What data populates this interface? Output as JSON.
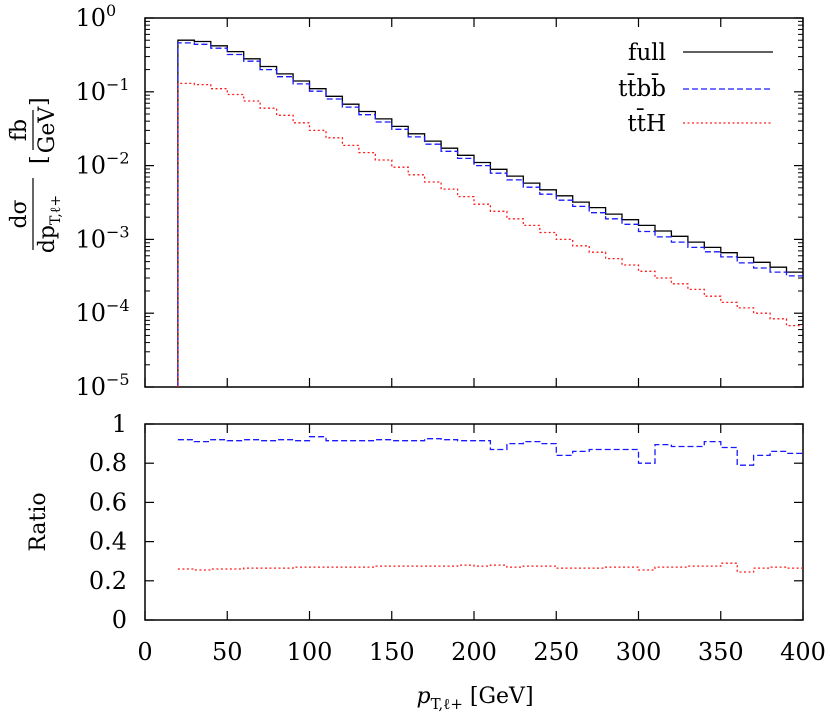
{
  "chart_data": [
    {
      "type": "line",
      "panel": "main",
      "ylabel": "dσ/dp_{T,ℓ+} [fb/GeV]",
      "ylabel_parts": {
        "num": "dσ",
        "den_main": "dp",
        "den_sub": "T,ℓ+",
        "unit_num": "fb",
        "unit_den": "GeV"
      },
      "yscale": "log",
      "xlim": [
        0,
        400
      ],
      "ylim": [
        1e-05,
        1
      ],
      "yticks": [
        {
          "mantissa": "10",
          "exp": "0"
        },
        {
          "mantissa": "10",
          "exp": "−1"
        },
        {
          "mantissa": "10",
          "exp": "−2"
        },
        {
          "mantissa": "10",
          "exp": "−3"
        },
        {
          "mantissa": "10",
          "exp": "−4"
        },
        {
          "mantissa": "10",
          "exp": "−5"
        }
      ],
      "legend_position": "top-right",
      "bin_edges": [
        20,
        30,
        40,
        50,
        60,
        70,
        80,
        90,
        100,
        110,
        120,
        130,
        140,
        150,
        160,
        170,
        180,
        190,
        200,
        210,
        220,
        230,
        240,
        250,
        260,
        270,
        280,
        290,
        300,
        310,
        320,
        330,
        340,
        350,
        360,
        370,
        380,
        390,
        400
      ],
      "series": [
        {
          "name": "full",
          "color": "#000000",
          "dash": "solid",
          "values": [
            0.5,
            0.48,
            0.42,
            0.35,
            0.28,
            0.22,
            0.175,
            0.14,
            0.11,
            0.087,
            0.068,
            0.054,
            0.043,
            0.034,
            0.027,
            0.0215,
            0.0172,
            0.0138,
            0.011,
            0.0089,
            0.0072,
            0.0058,
            0.0047,
            0.0039,
            0.0032,
            0.0027,
            0.0022,
            0.00185,
            0.00155,
            0.0013,
            0.0011,
            0.00092,
            0.00078,
            0.00066,
            0.00057,
            0.00049,
            0.00042,
            0.00036
          ]
        },
        {
          "name": "tt̄bb̄",
          "color": "#1a1aff",
          "dash": "dashed",
          "values": [
            0.46,
            0.44,
            0.39,
            0.32,
            0.26,
            0.2,
            0.16,
            0.128,
            0.102,
            0.08,
            0.062,
            0.049,
            0.039,
            0.031,
            0.0245,
            0.0195,
            0.0156,
            0.0125,
            0.01,
            0.0079,
            0.0064,
            0.0051,
            0.0041,
            0.0034,
            0.0028,
            0.0023,
            0.0019,
            0.0016,
            0.00128,
            0.00108,
            0.00092,
            0.00078,
            0.00068,
            0.00058,
            0.00048,
            0.00041,
            0.00036,
            0.00032
          ]
        },
        {
          "name": "tt̄H",
          "color": "#ff1a1a",
          "dash": "dotted",
          "values": [
            0.13,
            0.125,
            0.11,
            0.092,
            0.075,
            0.06,
            0.048,
            0.038,
            0.03,
            0.0238,
            0.0188,
            0.015,
            0.0119,
            0.0095,
            0.0075,
            0.006,
            0.0048,
            0.0038,
            0.003,
            0.0024,
            0.0019,
            0.00155,
            0.00124,
            0.001,
            0.00082,
            0.00067,
            0.00055,
            0.00045,
            0.00037,
            0.0003,
            0.00025,
            0.00021,
            0.00017,
            0.00014,
            0.000118,
            0.0001,
            8.4e-05,
            6.8e-05
          ]
        }
      ]
    },
    {
      "type": "line",
      "panel": "ratio",
      "ylabel": "Ratio",
      "xlabel": "p_{T,ℓ+} [GeV]",
      "xlabel_parts": {
        "main": "p",
        "sub": "T,ℓ+",
        "unit": " [GeV]"
      },
      "xlim": [
        0,
        400
      ],
      "ylim": [
        0,
        1
      ],
      "xticks": [
        "0",
        "50",
        "100",
        "150",
        "200",
        "250",
        "300",
        "350",
        "400"
      ],
      "yticks": [
        "0",
        "0.2",
        "0.4",
        "0.6",
        "0.8",
        "1"
      ],
      "bin_edges": [
        20,
        30,
        40,
        50,
        60,
        70,
        80,
        90,
        100,
        110,
        120,
        130,
        140,
        150,
        160,
        170,
        180,
        190,
        200,
        210,
        220,
        230,
        240,
        250,
        260,
        270,
        280,
        290,
        300,
        310,
        320,
        330,
        340,
        350,
        360,
        370,
        380,
        390,
        400
      ],
      "series": [
        {
          "name": "tt̄bb̄",
          "color": "#1a1aff",
          "dash": "dashed",
          "values": [
            0.92,
            0.91,
            0.92,
            0.915,
            0.92,
            0.915,
            0.92,
            0.915,
            0.935,
            0.915,
            0.915,
            0.915,
            0.92,
            0.915,
            0.915,
            0.925,
            0.92,
            0.915,
            0.915,
            0.87,
            0.9,
            0.91,
            0.9,
            0.84,
            0.86,
            0.87,
            0.87,
            0.87,
            0.8,
            0.895,
            0.885,
            0.885,
            0.91,
            0.88,
            0.79,
            0.84,
            0.86,
            0.85
          ]
        },
        {
          "name": "tt̄H",
          "color": "#ff1a1a",
          "dash": "dotted",
          "values": [
            0.26,
            0.255,
            0.26,
            0.26,
            0.265,
            0.265,
            0.265,
            0.27,
            0.27,
            0.27,
            0.27,
            0.27,
            0.275,
            0.275,
            0.275,
            0.275,
            0.275,
            0.28,
            0.275,
            0.28,
            0.27,
            0.275,
            0.275,
            0.265,
            0.265,
            0.265,
            0.27,
            0.27,
            0.255,
            0.27,
            0.27,
            0.275,
            0.275,
            0.29,
            0.245,
            0.265,
            0.27,
            0.265
          ]
        }
      ]
    }
  ]
}
